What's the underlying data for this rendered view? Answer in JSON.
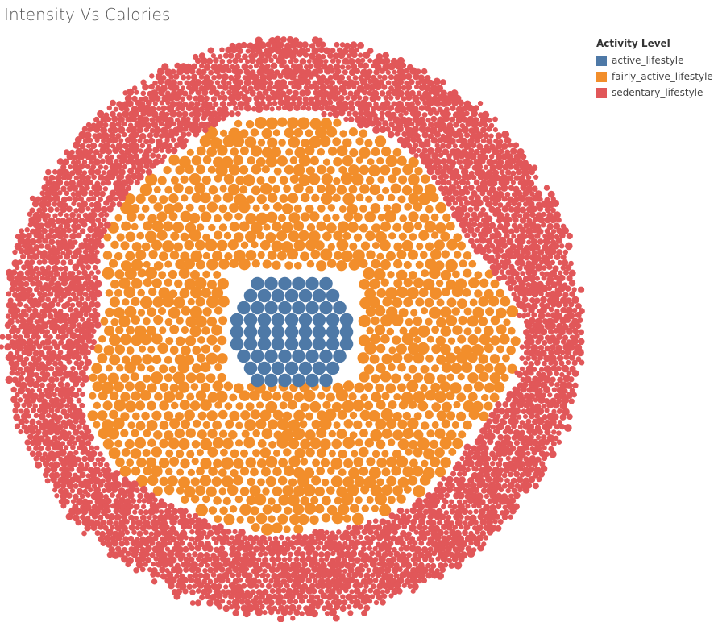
{
  "chart_data": {
    "type": "packed-bubble",
    "title": "Intensity Vs Calories",
    "legend": {
      "title": "Activity Level",
      "placement": "top-right",
      "items": [
        {
          "name": "active_lifestyle",
          "color": "#4e79a7"
        },
        {
          "name": "fairly_active_lifestyle",
          "color": "#f28e2b"
        },
        {
          "name": "sedentary_lifestyle",
          "color": "#e15759"
        }
      ]
    },
    "series": [
      {
        "name": "active_lifestyle",
        "approx_count": 60,
        "relative_size": "largest"
      },
      {
        "name": "fairly_active_lifestyle",
        "approx_count": 2600,
        "relative_size": "medium"
      },
      {
        "name": "sedentary_lifestyle",
        "approx_count": 9000,
        "relative_size": "smallest"
      }
    ]
  }
}
